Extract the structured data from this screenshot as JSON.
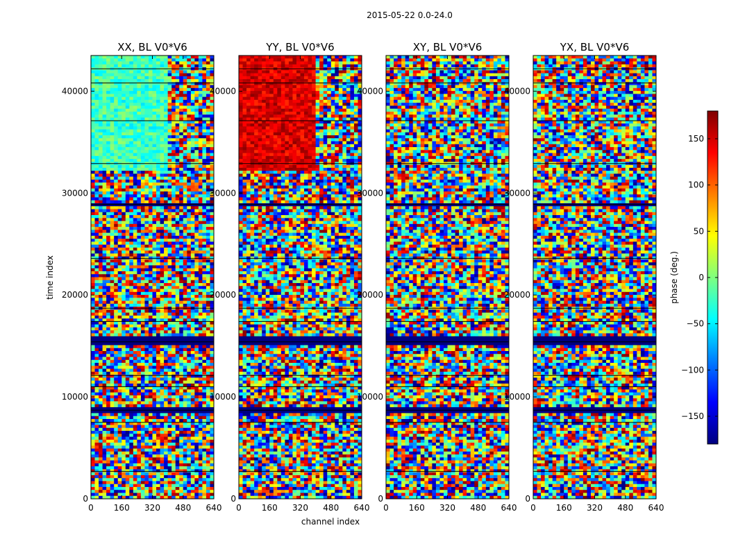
{
  "figure": {
    "suptitle": "2015-05-22 0.0-24.0",
    "xlabel": "channel index",
    "ylabel": "time index"
  },
  "colorbar": {
    "label": "phase (deg.)",
    "range": [
      -180,
      180
    ],
    "ticks": [
      -150,
      -100,
      -50,
      0,
      50,
      100,
      150
    ],
    "tick_labels": [
      "−150",
      "−100",
      "−50",
      "0",
      "50",
      "100",
      "150"
    ],
    "colors": [
      "#00007f",
      "#0000ff",
      "#007fff",
      "#00ffff",
      "#7fff7f",
      "#ffff00",
      "#ff7f00",
      "#ff0000",
      "#7f0000"
    ]
  },
  "chart_data": {
    "type": "heatmap",
    "title": "2015-05-22 0.0-24.0",
    "xlabel": "channel index",
    "ylabel": "time index",
    "xlim": [
      0,
      640
    ],
    "ylim": [
      0,
      43500
    ],
    "x_ticks": [
      0,
      160,
      320,
      480,
      640
    ],
    "y_ticks": [
      0,
      10000,
      20000,
      30000,
      40000
    ],
    "y_tick_labels": [
      "0",
      "10000",
      "20000",
      "30000",
      "40000"
    ],
    "value_label": "phase (deg.)",
    "value_range": [
      -180,
      180
    ],
    "panels": [
      {
        "title": "XX, BL V0*V6",
        "coherent_region": {
          "channels": [
            0,
            400
          ],
          "time": [
            32300,
            43500
          ],
          "phase_deg": [
            -55,
            10
          ]
        },
        "flagged_bands": [
          [
            28700,
            29000
          ],
          [
            15100,
            15800
          ],
          [
            8600,
            8900
          ]
        ]
      },
      {
        "title": "YY, BL V0*V6",
        "coherent_region": {
          "channels": [
            0,
            400
          ],
          "time": [
            32300,
            43500
          ],
          "phase_deg": [
            120,
            175
          ]
        },
        "flagged_bands": [
          [
            28700,
            29000
          ],
          [
            15100,
            15800
          ],
          [
            8600,
            8900
          ]
        ]
      },
      {
        "title": "XY, BL V0*V6",
        "coherent_region": null,
        "flagged_bands": [
          [
            28700,
            29000
          ],
          [
            15100,
            15800
          ],
          [
            8600,
            8900
          ]
        ]
      },
      {
        "title": "YX, BL V0*V6",
        "coherent_region": null,
        "flagged_bands": [
          [
            28700,
            29000
          ],
          [
            15100,
            15800
          ],
          [
            8600,
            8900
          ]
        ]
      }
    ]
  }
}
